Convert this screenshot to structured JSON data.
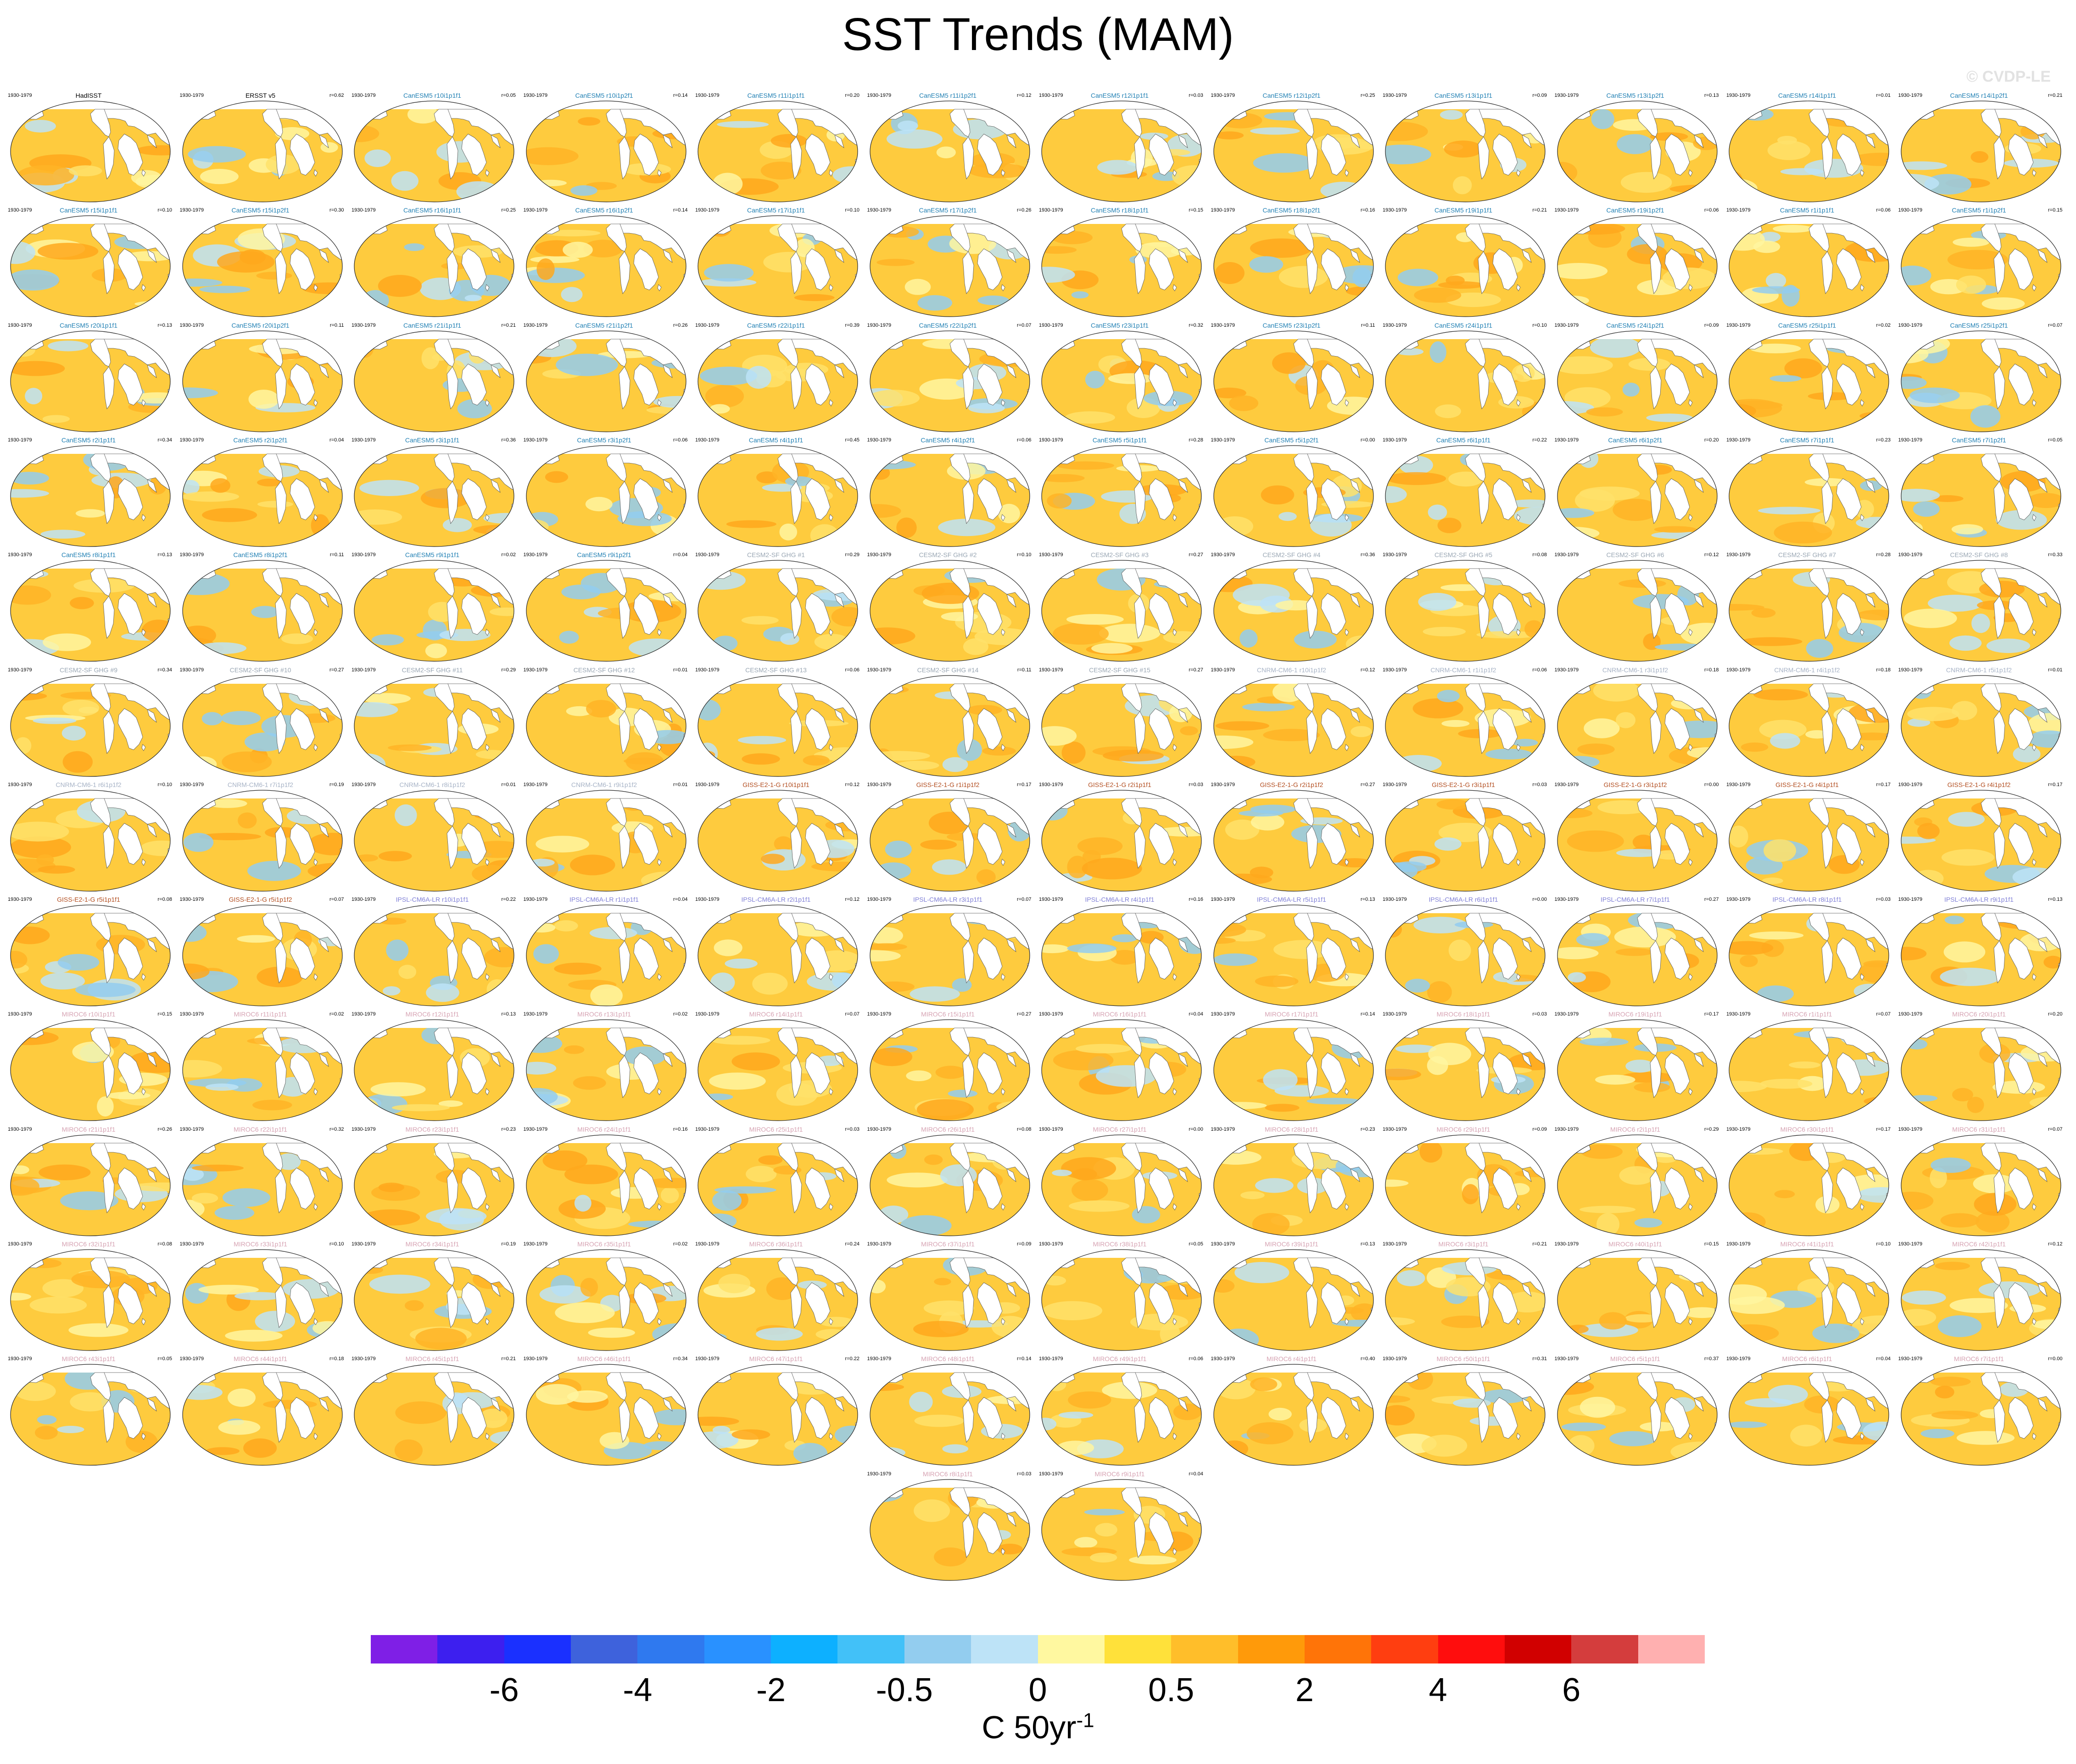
{
  "title": "SST Trends (MAM)",
  "copyright": "© CVDP-LE",
  "period": "1930-1979",
  "colors": {
    "obs": "#000000",
    "CanESM5": "#1f7fb3",
    "CESM2-SF GHG": "#9aa7b4",
    "CNRM-CM6-1": "#a7b3c6",
    "GISS-E2-1-G": "#b24d1f",
    "IPSL-CM6A-LR": "#7f7fd6",
    "MIROC6": "#d6a2b2"
  },
  "panels": [
    {
      "name": "HadISST",
      "corr": "",
      "group": "obs"
    },
    {
      "name": "ERSST v5",
      "corr": "r=0.62",
      "group": "obs"
    },
    {
      "name": "CanESM5 r10i1p1f1",
      "corr": "r=0.05",
      "group": "CanESM5"
    },
    {
      "name": "CanESM5 r10i1p2f1",
      "corr": "r=0.14",
      "group": "CanESM5"
    },
    {
      "name": "CanESM5 r11i1p1f1",
      "corr": "r=0.20",
      "group": "CanESM5"
    },
    {
      "name": "CanESM5 r11i1p2f1",
      "corr": "r=0.12",
      "group": "CanESM5"
    },
    {
      "name": "CanESM5 r12i1p1f1",
      "corr": "r=0.03",
      "group": "CanESM5"
    },
    {
      "name": "CanESM5 r12i1p2f1",
      "corr": "r=0.25",
      "group": "CanESM5"
    },
    {
      "name": "CanESM5 r13i1p1f1",
      "corr": "r=0.09",
      "group": "CanESM5"
    },
    {
      "name": "CanESM5 r13i1p2f1",
      "corr": "r=0.13",
      "group": "CanESM5"
    },
    {
      "name": "CanESM5 r14i1p1f1",
      "corr": "r=0.01",
      "group": "CanESM5"
    },
    {
      "name": "CanESM5 r14i1p2f1",
      "corr": "r=0.21",
      "group": "CanESM5"
    },
    {
      "name": "CanESM5 r15i1p1f1",
      "corr": "r=0.10",
      "group": "CanESM5"
    },
    {
      "name": "CanESM5 r15i1p2f1",
      "corr": "r=0.30",
      "group": "CanESM5"
    },
    {
      "name": "CanESM5 r16i1p1f1",
      "corr": "r=0.25",
      "group": "CanESM5"
    },
    {
      "name": "CanESM5 r16i1p2f1",
      "corr": "r=0.14",
      "group": "CanESM5"
    },
    {
      "name": "CanESM5 r17i1p1f1",
      "corr": "r=0.10",
      "group": "CanESM5"
    },
    {
      "name": "CanESM5 r17i1p2f1",
      "corr": "r=0.26",
      "group": "CanESM5"
    },
    {
      "name": "CanESM5 r18i1p1f1",
      "corr": "r=0.15",
      "group": "CanESM5"
    },
    {
      "name": "CanESM5 r18i1p2f1",
      "corr": "r=0.16",
      "group": "CanESM5"
    },
    {
      "name": "CanESM5 r19i1p1f1",
      "corr": "r=0.21",
      "group": "CanESM5"
    },
    {
      "name": "CanESM5 r19i1p2f1",
      "corr": "r=0.06",
      "group": "CanESM5"
    },
    {
      "name": "CanESM5 r1i1p1f1",
      "corr": "r=0.06",
      "group": "CanESM5"
    },
    {
      "name": "CanESM5 r1i1p2f1",
      "corr": "r=0.15",
      "group": "CanESM5"
    },
    {
      "name": "CanESM5 r20i1p1f1",
      "corr": "r=0.13",
      "group": "CanESM5"
    },
    {
      "name": "CanESM5 r20i1p2f1",
      "corr": "r=0.11",
      "group": "CanESM5"
    },
    {
      "name": "CanESM5 r21i1p1f1",
      "corr": "r=0.21",
      "group": "CanESM5"
    },
    {
      "name": "CanESM5 r21i1p2f1",
      "corr": "r=0.26",
      "group": "CanESM5"
    },
    {
      "name": "CanESM5 r22i1p1f1",
      "corr": "r=0.39",
      "group": "CanESM5"
    },
    {
      "name": "CanESM5 r22i1p2f1",
      "corr": "r=0.07",
      "group": "CanESM5"
    },
    {
      "name": "CanESM5 r23i1p1f1",
      "corr": "r=0.32",
      "group": "CanESM5"
    },
    {
      "name": "CanESM5 r23i1p2f1",
      "corr": "r=0.11",
      "group": "CanESM5"
    },
    {
      "name": "CanESM5 r24i1p1f1",
      "corr": "r=0.10",
      "group": "CanESM5"
    },
    {
      "name": "CanESM5 r24i1p2f1",
      "corr": "r=0.09",
      "group": "CanESM5"
    },
    {
      "name": "CanESM5 r25i1p1f1",
      "corr": "r=0.02",
      "group": "CanESM5"
    },
    {
      "name": "CanESM5 r25i1p2f1",
      "corr": "r=0.07",
      "group": "CanESM5"
    },
    {
      "name": "CanESM5 r2i1p1f1",
      "corr": "r=0.34",
      "group": "CanESM5"
    },
    {
      "name": "CanESM5 r2i1p2f1",
      "corr": "r=0.04",
      "group": "CanESM5"
    },
    {
      "name": "CanESM5 r3i1p1f1",
      "corr": "r=0.36",
      "group": "CanESM5"
    },
    {
      "name": "CanESM5 r3i1p2f1",
      "corr": "r=0.06",
      "group": "CanESM5"
    },
    {
      "name": "CanESM5 r4i1p1f1",
      "corr": "r=0.45",
      "group": "CanESM5"
    },
    {
      "name": "CanESM5 r4i1p2f1",
      "corr": "r=0.06",
      "group": "CanESM5"
    },
    {
      "name": "CanESM5 r5i1p1f1",
      "corr": "r=0.28",
      "group": "CanESM5"
    },
    {
      "name": "CanESM5 r5i1p2f1",
      "corr": "r=0.00",
      "group": "CanESM5"
    },
    {
      "name": "CanESM5 r6i1p1f1",
      "corr": "r=0.22",
      "group": "CanESM5"
    },
    {
      "name": "CanESM5 r6i1p2f1",
      "corr": "r=0.20",
      "group": "CanESM5"
    },
    {
      "name": "CanESM5 r7i1p1f1",
      "corr": "r=0.23",
      "group": "CanESM5"
    },
    {
      "name": "CanESM5 r7i1p2f1",
      "corr": "r=0.05",
      "group": "CanESM5"
    },
    {
      "name": "CanESM5 r8i1p1f1",
      "corr": "r=0.13",
      "group": "CanESM5"
    },
    {
      "name": "CanESM5 r8i1p2f1",
      "corr": "r=0.11",
      "group": "CanESM5"
    },
    {
      "name": "CanESM5 r9i1p1f1",
      "corr": "r=0.02",
      "group": "CanESM5"
    },
    {
      "name": "CanESM5 r9i1p2f1",
      "corr": "r=0.04",
      "group": "CanESM5"
    },
    {
      "name": "CESM2-SF GHG #1",
      "corr": "r=0.29",
      "group": "CESM2-SF GHG"
    },
    {
      "name": "CESM2-SF GHG #2",
      "corr": "r=0.10",
      "group": "CESM2-SF GHG"
    },
    {
      "name": "CESM2-SF GHG #3",
      "corr": "r=0.27",
      "group": "CESM2-SF GHG"
    },
    {
      "name": "CESM2-SF GHG #4",
      "corr": "r=0.36",
      "group": "CESM2-SF GHG"
    },
    {
      "name": "CESM2-SF GHG #5",
      "corr": "r=0.08",
      "group": "CESM2-SF GHG"
    },
    {
      "name": "CESM2-SF GHG #6",
      "corr": "r=0.12",
      "group": "CESM2-SF GHG"
    },
    {
      "name": "CESM2-SF GHG #7",
      "corr": "r=0.28",
      "group": "CESM2-SF GHG"
    },
    {
      "name": "CESM2-SF GHG #8",
      "corr": "r=0.33",
      "group": "CESM2-SF GHG"
    },
    {
      "name": "CESM2-SF GHG #9",
      "corr": "r=0.34",
      "group": "CESM2-SF GHG"
    },
    {
      "name": "CESM2-SF GHG #10",
      "corr": "r=0.27",
      "group": "CESM2-SF GHG"
    },
    {
      "name": "CESM2-SF GHG #11",
      "corr": "r=0.29",
      "group": "CESM2-SF GHG"
    },
    {
      "name": "CESM2-SF GHG #12",
      "corr": "r=0.01",
      "group": "CESM2-SF GHG"
    },
    {
      "name": "CESM2-SF GHG #13",
      "corr": "r=0.06",
      "group": "CESM2-SF GHG"
    },
    {
      "name": "CESM2-SF GHG #14",
      "corr": "r=0.11",
      "group": "CESM2-SF GHG"
    },
    {
      "name": "CESM2-SF GHG #15",
      "corr": "r=0.27",
      "group": "CESM2-SF GHG"
    },
    {
      "name": "CNRM-CM6-1 r10i1p1f2",
      "corr": "r=0.12",
      "group": "CNRM-CM6-1"
    },
    {
      "name": "CNRM-CM6-1 r1i1p1f2",
      "corr": "r=0.06",
      "group": "CNRM-CM6-1"
    },
    {
      "name": "CNRM-CM6-1 r3i1p1f2",
      "corr": "r=0.18",
      "group": "CNRM-CM6-1"
    },
    {
      "name": "CNRM-CM6-1 r4i1p1f2",
      "corr": "r=0.18",
      "group": "CNRM-CM6-1"
    },
    {
      "name": "CNRM-CM6-1 r5i1p1f2",
      "corr": "r=0.01",
      "group": "CNRM-CM6-1"
    },
    {
      "name": "CNRM-CM6-1 r6i1p1f2",
      "corr": "r=0.10",
      "group": "CNRM-CM6-1"
    },
    {
      "name": "CNRM-CM6-1 r7i1p1f2",
      "corr": "r=0.19",
      "group": "CNRM-CM6-1"
    },
    {
      "name": "CNRM-CM6-1 r8i1p1f2",
      "corr": "r=0.01",
      "group": "CNRM-CM6-1"
    },
    {
      "name": "CNRM-CM6-1 r9i1p1f2",
      "corr": "r=0.01",
      "group": "CNRM-CM6-1"
    },
    {
      "name": "GISS-E2-1-G r10i1p1f1",
      "corr": "r=0.12",
      "group": "GISS-E2-1-G"
    },
    {
      "name": "GISS-E2-1-G r1i1p1f2",
      "corr": "r=0.17",
      "group": "GISS-E2-1-G"
    },
    {
      "name": "GISS-E2-1-G r2i1p1f1",
      "corr": "r=0.03",
      "group": "GISS-E2-1-G"
    },
    {
      "name": "GISS-E2-1-G r2i1p1f2",
      "corr": "r=0.27",
      "group": "GISS-E2-1-G"
    },
    {
      "name": "GISS-E2-1-G r3i1p1f1",
      "corr": "r=0.03",
      "group": "GISS-E2-1-G"
    },
    {
      "name": "GISS-E2-1-G r3i1p1f2",
      "corr": "r=0.00",
      "group": "GISS-E2-1-G"
    },
    {
      "name": "GISS-E2-1-G r4i1p1f1",
      "corr": "r=0.17",
      "group": "GISS-E2-1-G"
    },
    {
      "name": "GISS-E2-1-G r4i1p1f2",
      "corr": "r=0.17",
      "group": "GISS-E2-1-G"
    },
    {
      "name": "GISS-E2-1-G r5i1p1f1",
      "corr": "r=0.08",
      "group": "GISS-E2-1-G"
    },
    {
      "name": "GISS-E2-1-G r5i1p1f2",
      "corr": "r=0.07",
      "group": "GISS-E2-1-G"
    },
    {
      "name": "IPSL-CM6A-LR r10i1p1f1",
      "corr": "r=0.22",
      "group": "IPSL-CM6A-LR"
    },
    {
      "name": "IPSL-CM6A-LR r1i1p1f1",
      "corr": "r=0.04",
      "group": "IPSL-CM6A-LR"
    },
    {
      "name": "IPSL-CM6A-LR r2i1p1f1",
      "corr": "r=0.12",
      "group": "IPSL-CM6A-LR"
    },
    {
      "name": "IPSL-CM6A-LR r3i1p1f1",
      "corr": "r=0.07",
      "group": "IPSL-CM6A-LR"
    },
    {
      "name": "IPSL-CM6A-LR r4i1p1f1",
      "corr": "r=0.16",
      "group": "IPSL-CM6A-LR"
    },
    {
      "name": "IPSL-CM6A-LR r5i1p1f1",
      "corr": "r=0.13",
      "group": "IPSL-CM6A-LR"
    },
    {
      "name": "IPSL-CM6A-LR r6i1p1f1",
      "corr": "r=0.00",
      "group": "IPSL-CM6A-LR"
    },
    {
      "name": "IPSL-CM6A-LR r7i1p1f1",
      "corr": "r=0.27",
      "group": "IPSL-CM6A-LR"
    },
    {
      "name": "IPSL-CM6A-LR r8i1p1f1",
      "corr": "r=0.03",
      "group": "IPSL-CM6A-LR"
    },
    {
      "name": "IPSL-CM6A-LR r9i1p1f1",
      "corr": "r=0.13",
      "group": "IPSL-CM6A-LR"
    },
    {
      "name": "MIROC6 r10i1p1f1",
      "corr": "r=0.15",
      "group": "MIROC6"
    },
    {
      "name": "MIROC6 r11i1p1f1",
      "corr": "r=0.02",
      "group": "MIROC6"
    },
    {
      "name": "MIROC6 r12i1p1f1",
      "corr": "r=0.13",
      "group": "MIROC6"
    },
    {
      "name": "MIROC6 r13i1p1f1",
      "corr": "r=0.02",
      "group": "MIROC6"
    },
    {
      "name": "MIROC6 r14i1p1f1",
      "corr": "r=0.07",
      "group": "MIROC6"
    },
    {
      "name": "MIROC6 r15i1p1f1",
      "corr": "r=0.27",
      "group": "MIROC6"
    },
    {
      "name": "MIROC6 r16i1p1f1",
      "corr": "r=0.04",
      "group": "MIROC6"
    },
    {
      "name": "MIROC6 r17i1p1f1",
      "corr": "r=0.14",
      "group": "MIROC6"
    },
    {
      "name": "MIROC6 r18i1p1f1",
      "corr": "r=0.03",
      "group": "MIROC6"
    },
    {
      "name": "MIROC6 r19i1p1f1",
      "corr": "r=0.17",
      "group": "MIROC6"
    },
    {
      "name": "MIROC6 r1i1p1f1",
      "corr": "r=0.07",
      "group": "MIROC6"
    },
    {
      "name": "MIROC6 r20i1p1f1",
      "corr": "r=0.20",
      "group": "MIROC6"
    },
    {
      "name": "MIROC6 r21i1p1f1",
      "corr": "r=0.26",
      "group": "MIROC6"
    },
    {
      "name": "MIROC6 r22i1p1f1",
      "corr": "r=0.32",
      "group": "MIROC6"
    },
    {
      "name": "MIROC6 r23i1p1f1",
      "corr": "r=0.23",
      "group": "MIROC6"
    },
    {
      "name": "MIROC6 r24i1p1f1",
      "corr": "r=0.16",
      "group": "MIROC6"
    },
    {
      "name": "MIROC6 r25i1p1f1",
      "corr": "r=0.03",
      "group": "MIROC6"
    },
    {
      "name": "MIROC6 r26i1p1f1",
      "corr": "r=0.08",
      "group": "MIROC6"
    },
    {
      "name": "MIROC6 r27i1p1f1",
      "corr": "r=0.00",
      "group": "MIROC6"
    },
    {
      "name": "MIROC6 r28i1p1f1",
      "corr": "r=0.23",
      "group": "MIROC6"
    },
    {
      "name": "MIROC6 r29i1p1f1",
      "corr": "r=0.09",
      "group": "MIROC6"
    },
    {
      "name": "MIROC6 r2i1p1f1",
      "corr": "r=0.29",
      "group": "MIROC6"
    },
    {
      "name": "MIROC6 r30i1p1f1",
      "corr": "r=0.17",
      "group": "MIROC6"
    },
    {
      "name": "MIROC6 r31i1p1f1",
      "corr": "r=0.07",
      "group": "MIROC6"
    },
    {
      "name": "MIROC6 r32i1p1f1",
      "corr": "r=0.08",
      "group": "MIROC6"
    },
    {
      "name": "MIROC6 r33i1p1f1",
      "corr": "r=0.10",
      "group": "MIROC6"
    },
    {
      "name": "MIROC6 r34i1p1f1",
      "corr": "r=0.19",
      "group": "MIROC6"
    },
    {
      "name": "MIROC6 r35i1p1f1",
      "corr": "r=0.02",
      "group": "MIROC6"
    },
    {
      "name": "MIROC6 r36i1p1f1",
      "corr": "r=0.24",
      "group": "MIROC6"
    },
    {
      "name": "MIROC6 r37i1p1f1",
      "corr": "r=0.09",
      "group": "MIROC6"
    },
    {
      "name": "MIROC6 r38i1p1f1",
      "corr": "r=0.05",
      "group": "MIROC6"
    },
    {
      "name": "MIROC6 r39i1p1f1",
      "corr": "r=0.13",
      "group": "MIROC6"
    },
    {
      "name": "MIROC6 r3i1p1f1",
      "corr": "r=0.21",
      "group": "MIROC6"
    },
    {
      "name": "MIROC6 r40i1p1f1",
      "corr": "r=0.15",
      "group": "MIROC6"
    },
    {
      "name": "MIROC6 r41i1p1f1",
      "corr": "r=0.10",
      "group": "MIROC6"
    },
    {
      "name": "MIROC6 r42i1p1f1",
      "corr": "r=0.12",
      "group": "MIROC6"
    },
    {
      "name": "MIROC6 r43i1p1f1",
      "corr": "r=0.05",
      "group": "MIROC6"
    },
    {
      "name": "MIROC6 r44i1p1f1",
      "corr": "r=0.18",
      "group": "MIROC6"
    },
    {
      "name": "MIROC6 r45i1p1f1",
      "corr": "r=0.21",
      "group": "MIROC6"
    },
    {
      "name": "MIROC6 r46i1p1f1",
      "corr": "r=0.34",
      "group": "MIROC6"
    },
    {
      "name": "MIROC6 r47i1p1f1",
      "corr": "r=0.22",
      "group": "MIROC6"
    },
    {
      "name": "MIROC6 r48i1p1f1",
      "corr": "r=0.14",
      "group": "MIROC6"
    },
    {
      "name": "MIROC6 r49i1p1f1",
      "corr": "r=0.06",
      "group": "MIROC6"
    },
    {
      "name": "MIROC6 r4i1p1f1",
      "corr": "r=0.40",
      "group": "MIROC6"
    },
    {
      "name": "MIROC6 r50i1p1f1",
      "corr": "r=0.31",
      "group": "MIROC6"
    },
    {
      "name": "MIROC6 r5i1p1f1",
      "corr": "r=0.37",
      "group": "MIROC6"
    },
    {
      "name": "MIROC6 r6i1p1f1",
      "corr": "r=0.04",
      "group": "MIROC6"
    },
    {
      "name": "MIROC6 r7i1p1f1",
      "corr": "r=0.00",
      "group": "MIROC6"
    },
    {
      "name": "MIROC6 r8i1p1f1",
      "corr": "r=0.03",
      "group": "MIROC6"
    },
    {
      "name": "MIROC6 r9i1p1f1",
      "corr": "r=0.04",
      "group": "MIROC6"
    }
  ],
  "colorbar": {
    "colors": [
      "#7f1fe6",
      "#3d1fef",
      "#1a30ff",
      "#3e62dc",
      "#2f79ef",
      "#2991ff",
      "#0db0ff",
      "#42c1f8",
      "#93cdef",
      "#bde3f7",
      "#fff8a0",
      "#ffe13a",
      "#ffbe2a",
      "#ff9a0a",
      "#ff7408",
      "#ff3e10",
      "#ff0d0d",
      "#d10000",
      "#d43d3d",
      "#ffb0b0"
    ],
    "tick_labels": [
      "-6",
      "-4",
      "-2",
      "-0.5",
      "0",
      "0.5",
      "2",
      "4",
      "6"
    ],
    "units": "C 50yr",
    "units_sup": "-1"
  }
}
